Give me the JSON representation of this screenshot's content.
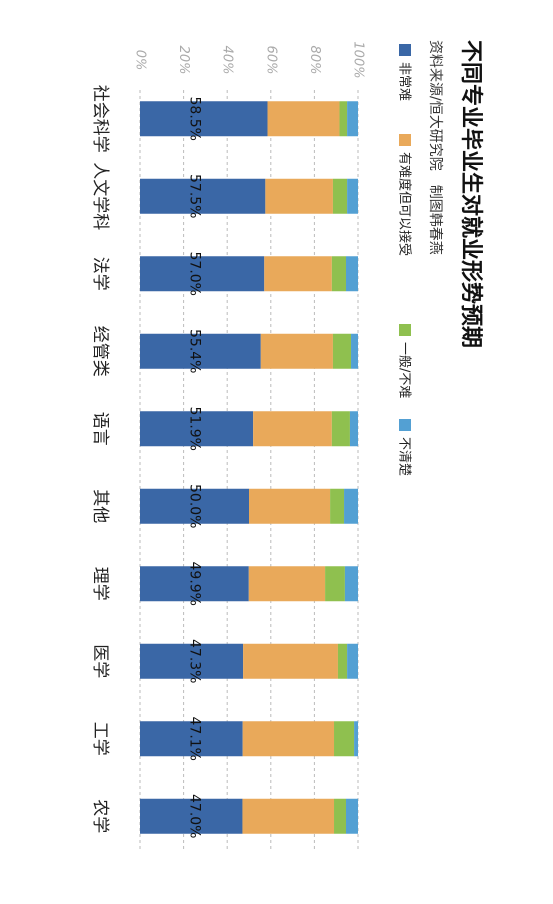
{
  "chart_data": {
    "type": "stacked_bar",
    "title": "不同专业毕业生对就业形势预期",
    "source": "资料来源/恒大研究院　制图韩春燕",
    "categories": [
      "社会科学",
      "人文学科",
      "法学",
      "经管类",
      "语言",
      "其他",
      "理学",
      "医学",
      "工学",
      "农学"
    ],
    "series": [
      {
        "name": "非常难",
        "color": "#3a67a6",
        "values": [
          58.5,
          57.5,
          57.0,
          55.4,
          51.9,
          50.0,
          49.9,
          47.3,
          47.1,
          47.0
        ],
        "value_labels": [
          "58.5%",
          "57.5%",
          "57.0%",
          "55.4%",
          "51.9%",
          "50.0%",
          "49.9%",
          "47.3%",
          "47.1%",
          "47.0%"
        ]
      },
      {
        "name": "有难度但可以接受",
        "color": "#e9a95a",
        "values": [
          33.0,
          31.0,
          31.0,
          33.1,
          36.1,
          37.2,
          35.0,
          43.5,
          41.9,
          42.0
        ]
      },
      {
        "name": "一般/不难",
        "color": "#8fc04f",
        "values": [
          3.5,
          6.5,
          6.5,
          8.3,
          8.3,
          6.4,
          9.1,
          4.2,
          9.2,
          5.5
        ]
      },
      {
        "name": "不清楚",
        "color": "#53a0d3",
        "values": [
          5.0,
          5.0,
          5.5,
          3.2,
          3.7,
          6.4,
          6.0,
          5.0,
          1.8,
          5.5
        ]
      }
    ],
    "ylim": [
      0,
      100
    ],
    "yticks": [
      {
        "value": 0,
        "label": "0%"
      },
      {
        "value": 20,
        "label": "20%"
      },
      {
        "value": 40,
        "label": "40%"
      },
      {
        "value": 60,
        "label": "60%"
      },
      {
        "value": 80,
        "label": "80%"
      },
      {
        "value": 100,
        "label": "100%"
      }
    ],
    "grid": true
  }
}
